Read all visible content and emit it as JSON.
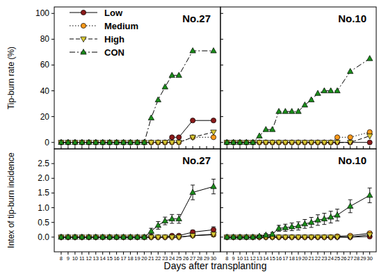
{
  "chart_data": [
    {
      "type": "line",
      "title": "No.27",
      "y_label": "Tip-burn rate (%)",
      "legend": "upper left",
      "tick_labels": "y",
      "x": [
        8,
        9,
        10,
        11,
        12,
        13,
        14,
        15,
        16,
        17,
        18,
        19,
        20,
        21,
        22,
        23,
        24,
        25,
        27,
        30
      ],
      "xlim": [
        7,
        31
      ],
      "xticks": [
        8,
        9,
        10,
        11,
        12,
        13,
        14,
        15,
        16,
        17,
        18,
        19,
        20,
        21,
        22,
        23,
        24,
        25,
        26,
        27,
        28,
        29,
        30
      ],
      "ylim": [
        -5,
        105
      ],
      "yticks": [
        0,
        20,
        40,
        60,
        80,
        100
      ],
      "series": [
        {
          "name": "Low",
          "color": "#8b1a1a",
          "marker": "circle",
          "line_style": "solid",
          "values": [
            0,
            0,
            0,
            0,
            0,
            0,
            0,
            0,
            0,
            0,
            0,
            0,
            0,
            0,
            0,
            0,
            4,
            4,
            17,
            17
          ]
        },
        {
          "name": "Medium",
          "color": "#ff9a1a",
          "marker": "circle",
          "line_style": "dotted",
          "values": [
            0,
            0,
            0,
            0,
            0,
            0,
            0,
            0,
            0,
            0,
            0,
            0,
            0,
            0,
            0,
            0,
            0,
            0,
            4,
            4
          ]
        },
        {
          "name": "High",
          "color": "#d8c832",
          "marker": "triangle-down",
          "line_style": "dashed",
          "values": [
            0,
            0,
            0,
            0,
            0,
            0,
            0,
            0,
            0,
            0,
            0,
            0,
            0,
            0,
            0,
            0,
            0,
            0,
            4,
            8
          ]
        },
        {
          "name": "CON",
          "color": "#1a8c1a",
          "marker": "triangle-up",
          "line_style": "dashdot",
          "values": [
            0,
            0,
            0,
            0,
            0,
            0,
            0,
            0,
            0,
            0,
            0,
            0,
            0,
            19,
            33,
            43,
            52,
            52,
            71,
            71
          ]
        }
      ]
    },
    {
      "type": "line",
      "title": "No.10",
      "tick_labels": false,
      "x": [
        8,
        9,
        10,
        11,
        12,
        13,
        14,
        15,
        16,
        17,
        18,
        19,
        20,
        21,
        22,
        23,
        24,
        25,
        27,
        30
      ],
      "xlim": [
        7,
        31
      ],
      "xticks": [
        8,
        9,
        10,
        11,
        12,
        13,
        14,
        15,
        16,
        17,
        18,
        19,
        20,
        21,
        22,
        23,
        24,
        25,
        26,
        27,
        28,
        29,
        30
      ],
      "ylim": [
        -5,
        105
      ],
      "yticks": [
        0,
        20,
        40,
        60,
        80,
        100
      ],
      "series": [
        {
          "name": "Low",
          "color": "#8b1a1a",
          "marker": "circle",
          "line_style": "solid",
          "values": [
            0,
            0,
            0,
            0,
            0,
            0,
            0,
            0,
            0,
            0,
            0,
            0,
            0,
            0,
            0,
            0,
            0,
            0,
            0,
            0
          ]
        },
        {
          "name": "Medium",
          "color": "#ff9a1a",
          "marker": "circle",
          "line_style": "dotted",
          "values": [
            0,
            0,
            0,
            0,
            0,
            0,
            0,
            0,
            0,
            0,
            0,
            0,
            0,
            0,
            0,
            0,
            0,
            4,
            4,
            8
          ]
        },
        {
          "name": "High",
          "color": "#d8c832",
          "marker": "triangle-down",
          "line_style": "dashed",
          "values": [
            0,
            0,
            0,
            0,
            0,
            0,
            0,
            0,
            0,
            0,
            0,
            0,
            0,
            0,
            0,
            0,
            0,
            0,
            0,
            5
          ]
        },
        {
          "name": "CON",
          "color": "#1a8c1a",
          "marker": "triangle-up",
          "line_style": "dashdot",
          "values": [
            0,
            0,
            0,
            0,
            0,
            5,
            10,
            10,
            24,
            24,
            24,
            24,
            29,
            33,
            38,
            40,
            40,
            40,
            55,
            65
          ]
        }
      ]
    },
    {
      "type": "line",
      "title": "No.27",
      "y_label": "Intex of tip-burn incidence",
      "x_label": "Days after transplanting",
      "tick_labels": true,
      "x": [
        8,
        9,
        10,
        11,
        12,
        13,
        14,
        15,
        16,
        17,
        18,
        19,
        20,
        21,
        22,
        23,
        24,
        25,
        27,
        30
      ],
      "xlim": [
        7,
        31
      ],
      "xticks": [
        8,
        9,
        10,
        11,
        12,
        13,
        14,
        15,
        16,
        17,
        18,
        19,
        20,
        21,
        22,
        23,
        24,
        25,
        26,
        27,
        28,
        29,
        30
      ],
      "ylim": [
        -0.5,
        3.0
      ],
      "yticks": [
        {
          "value": 0,
          "label": "0.0"
        },
        {
          "value": 0.5,
          "label": "0.5"
        },
        {
          "value": 1,
          "label": "1.0"
        },
        {
          "value": 1.5,
          "label": "1.5"
        },
        {
          "value": 2,
          "label": "2.0"
        },
        {
          "value": 2.5,
          "label": "2.5"
        }
      ],
      "series": [
        {
          "name": "Low",
          "color": "#8b1a1a",
          "marker": "circle",
          "line_style": "solid",
          "values": [
            0,
            0,
            0,
            0,
            0,
            0,
            0,
            0,
            0,
            0,
            0,
            0,
            0,
            0,
            0,
            0,
            0.05,
            0.05,
            0.17,
            0.25
          ],
          "errors": [
            0,
            0,
            0,
            0,
            0,
            0,
            0,
            0,
            0,
            0,
            0,
            0,
            0,
            0,
            0,
            0,
            0,
            0,
            0.06,
            0.1
          ]
        },
        {
          "name": "Medium",
          "color": "#ff9a1a",
          "marker": "circle",
          "line_style": "solid",
          "values": [
            0,
            0,
            0,
            0,
            0,
            0,
            0,
            0,
            0,
            0,
            0,
            0,
            0,
            0,
            0,
            0,
            0,
            0,
            0.05,
            0.08
          ],
          "errors": [
            0,
            0,
            0,
            0,
            0,
            0,
            0,
            0,
            0,
            0,
            0,
            0,
            0,
            0,
            0,
            0,
            0,
            0,
            0.03,
            0.05
          ]
        },
        {
          "name": "High",
          "color": "#d8c832",
          "marker": "triangle-down",
          "line_style": "solid",
          "values": [
            0,
            0,
            0,
            0,
            0,
            0,
            0,
            0,
            0,
            0,
            0,
            0,
            0,
            0,
            0,
            0,
            0,
            0,
            0.05,
            0.1
          ],
          "errors": [
            0,
            0,
            0,
            0,
            0,
            0,
            0,
            0,
            0,
            0,
            0,
            0,
            0,
            0,
            0,
            0,
            0,
            0,
            0.03,
            0.06
          ]
        },
        {
          "name": "CON",
          "color": "#1a8c1a",
          "marker": "triangle-up",
          "line_style": "solid",
          "values": [
            0,
            0,
            0,
            0,
            0,
            0,
            0,
            0,
            0,
            0,
            0,
            0,
            0,
            0.2,
            0.4,
            0.55,
            0.62,
            0.62,
            1.52,
            1.72
          ],
          "errors": [
            0,
            0,
            0,
            0,
            0,
            0,
            0,
            0,
            0,
            0,
            0,
            0,
            0,
            0.1,
            0.13,
            0.13,
            0.15,
            0.15,
            0.25,
            0.25
          ]
        }
      ]
    },
    {
      "type": "line",
      "title": "No.10",
      "tick_labels": "x",
      "x": [
        8,
        9,
        10,
        11,
        12,
        13,
        14,
        15,
        16,
        17,
        18,
        19,
        20,
        21,
        22,
        23,
        24,
        25,
        27,
        30
      ],
      "xlim": [
        7,
        31
      ],
      "xticks": [
        8,
        9,
        10,
        11,
        12,
        13,
        14,
        15,
        16,
        17,
        18,
        19,
        20,
        21,
        22,
        23,
        24,
        25,
        26,
        27,
        28,
        29,
        30
      ],
      "ylim": [
        -0.5,
        3.0
      ],
      "yticks": [
        0,
        0.5,
        1,
        1.5,
        2,
        2.5
      ],
      "series": [
        {
          "name": "Low",
          "color": "#8b1a1a",
          "marker": "circle",
          "line_style": "solid",
          "values": [
            0,
            0,
            0,
            0,
            0,
            0,
            0,
            0,
            0,
            0,
            0,
            0,
            0,
            0,
            0,
            0,
            0,
            0,
            0,
            0.02
          ],
          "errors": [
            0,
            0,
            0,
            0,
            0,
            0,
            0,
            0,
            0,
            0,
            0,
            0,
            0,
            0,
            0,
            0,
            0,
            0,
            0,
            0
          ]
        },
        {
          "name": "Medium",
          "color": "#ff9a1a",
          "marker": "circle",
          "line_style": "solid",
          "values": [
            0,
            0,
            0,
            0,
            0,
            0,
            0,
            0,
            0,
            0,
            0,
            0,
            0,
            0,
            0,
            0,
            0,
            0.03,
            0.05,
            0.13
          ],
          "errors": [
            0,
            0,
            0,
            0,
            0,
            0,
            0,
            0,
            0,
            0,
            0,
            0,
            0,
            0,
            0,
            0,
            0,
            0,
            0.03,
            0.07
          ]
        },
        {
          "name": "High",
          "color": "#d8c832",
          "marker": "triangle-down",
          "line_style": "solid",
          "values": [
            0,
            0,
            0,
            0,
            0,
            0,
            0,
            0,
            0,
            0,
            0,
            0,
            0,
            0,
            0,
            0,
            0,
            0,
            0,
            0.08
          ],
          "errors": [
            0,
            0,
            0,
            0,
            0,
            0,
            0,
            0,
            0,
            0,
            0,
            0,
            0,
            0,
            0,
            0,
            0,
            0,
            0,
            0.05
          ]
        },
        {
          "name": "CON",
          "color": "#1a8c1a",
          "marker": "triangle-up",
          "line_style": "solid",
          "values": [
            0,
            0,
            0,
            0,
            0,
            0.03,
            0.07,
            0.1,
            0.3,
            0.32,
            0.35,
            0.38,
            0.45,
            0.5,
            0.58,
            0.62,
            0.68,
            0.75,
            1.05,
            1.42
          ],
          "errors": [
            0,
            0,
            0,
            0,
            0,
            0.03,
            0.05,
            0.06,
            0.1,
            0.12,
            0.13,
            0.14,
            0.15,
            0.17,
            0.18,
            0.19,
            0.2,
            0.2,
            0.22,
            0.25
          ]
        }
      ]
    }
  ]
}
